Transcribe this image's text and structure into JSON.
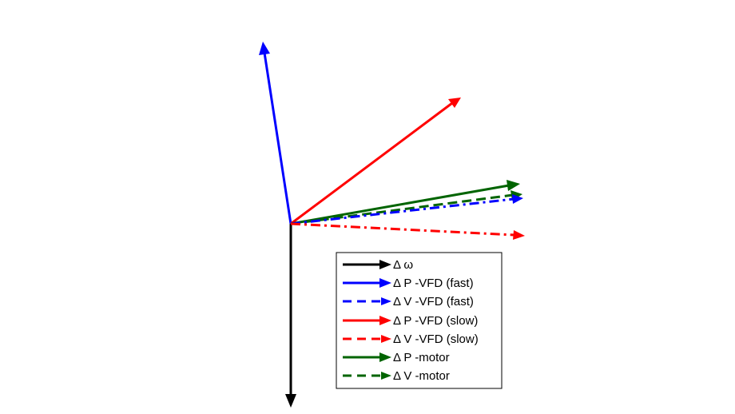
{
  "legend": [
    {
      "label": "Δ ω",
      "color": "#000000",
      "style": "solid"
    },
    {
      "label": "Δ P -VFD (fast)",
      "color": "#0000ff",
      "style": "solid"
    },
    {
      "label": "Δ V -VFD (fast)",
      "color": "#0000ff",
      "style": "dashed"
    },
    {
      "label": "Δ P -VFD (slow)",
      "color": "#ff0000",
      "style": "solid"
    },
    {
      "label": "Δ V -VFD (slow)",
      "color": "#ff0000",
      "style": "dashed"
    },
    {
      "label": "Δ P -motor",
      "color": "#006400",
      "style": "solid"
    },
    {
      "label": "Δ V -motor",
      "color": "#006400",
      "style": "dashed"
    }
  ]
}
